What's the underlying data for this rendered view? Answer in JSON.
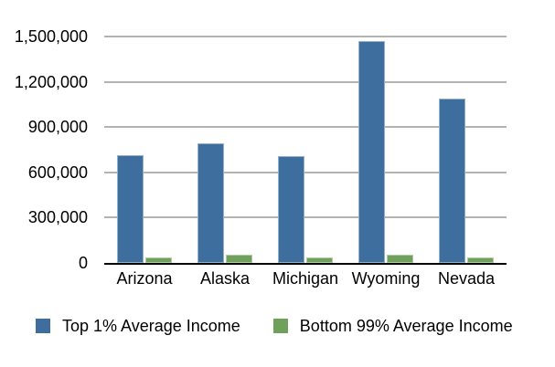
{
  "chart_data": {
    "type": "bar",
    "title": "",
    "xlabel": "",
    "ylabel": "",
    "categories": [
      "Arizona",
      "Alaska",
      "Michigan",
      "Wyoming",
      "Nevada"
    ],
    "series": [
      {
        "name": "Top 1% Average Income",
        "color": "#3d6e9e",
        "values": [
          712000,
          792000,
          706000,
          1471000,
          1086000
        ]
      },
      {
        "name": "Bottom 99% Average Income",
        "color": "#6fa15b",
        "values": [
          36000,
          56000,
          34000,
          52000,
          37000
        ]
      }
    ],
    "ylim": [
      0,
      1500000
    ],
    "yticks": [
      0,
      300000,
      600000,
      900000,
      1200000,
      1500000
    ],
    "ytick_labels": [
      "0",
      "300,000",
      "600,000",
      "900,000",
      "1,200,000",
      "1,500,000"
    ],
    "grid": true,
    "legend_position": "bottom"
  },
  "colors": {
    "background": "#ffffff",
    "gridline": "#b3b3b3",
    "axis": "#000000",
    "text": "#000000",
    "series1": "#3d6e9e",
    "series2": "#6fa15b"
  }
}
